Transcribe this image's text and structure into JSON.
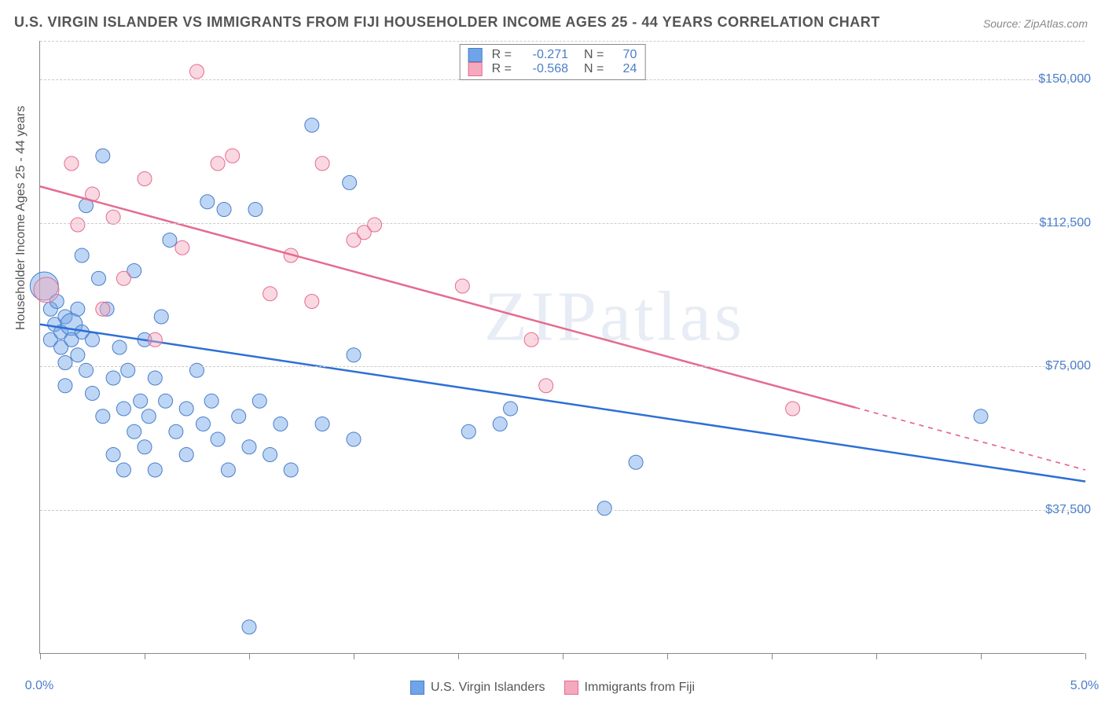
{
  "title": "U.S. VIRGIN ISLANDER VS IMMIGRANTS FROM FIJI HOUSEHOLDER INCOME AGES 25 - 44 YEARS CORRELATION CHART",
  "source": "Source: ZipAtlas.com",
  "watermark": "ZIPatlas",
  "ylabel": "Householder Income Ages 25 - 44 years",
  "chart": {
    "type": "scatter",
    "xlim": [
      0,
      5
    ],
    "ylim": [
      0,
      160000
    ],
    "x_ticks": [
      0,
      0.5,
      1.0,
      1.5,
      2.0,
      2.5,
      3.0,
      3.5,
      4.0,
      4.5,
      5.0
    ],
    "x_tick_labels": {
      "0": "0.0%",
      "5": "5.0%"
    },
    "y_gridlines": [
      37500,
      75000,
      112500,
      150000,
      160000
    ],
    "y_tick_labels": {
      "37500": "$37,500",
      "75000": "$75,000",
      "112500": "$112,500",
      "150000": "$150,000"
    },
    "background_color": "#ffffff",
    "grid_color": "#cccccc",
    "axis_color": "#888888",
    "label_color": "#555555",
    "tick_label_color": "#4a7ec9",
    "marker_radius": 9,
    "marker_opacity": 0.45,
    "line_width": 2.5,
    "series": [
      {
        "name": "U.S. Virgin Islanders",
        "color": "#6fa4e8",
        "stroke": "#4a7ec9",
        "line_color": "#2e6fd6",
        "R": "-0.271",
        "N": "70",
        "trend": {
          "x1": 0.0,
          "y1": 86000,
          "x2": 5.0,
          "y2": 45000,
          "dash_from": null
        },
        "points": [
          [
            0.02,
            96000,
            18
          ],
          [
            0.05,
            90000
          ],
          [
            0.05,
            82000
          ],
          [
            0.07,
            86000
          ],
          [
            0.08,
            92000
          ],
          [
            0.1,
            84000
          ],
          [
            0.1,
            80000
          ],
          [
            0.12,
            88000
          ],
          [
            0.12,
            76000
          ],
          [
            0.12,
            70000
          ],
          [
            0.15,
            86000,
            14
          ],
          [
            0.15,
            82000
          ],
          [
            0.18,
            90000
          ],
          [
            0.18,
            78000
          ],
          [
            0.2,
            84000
          ],
          [
            0.2,
            104000
          ],
          [
            0.22,
            74000
          ],
          [
            0.22,
            117000
          ],
          [
            0.25,
            68000
          ],
          [
            0.25,
            82000
          ],
          [
            0.28,
            98000
          ],
          [
            0.3,
            62000
          ],
          [
            0.3,
            130000
          ],
          [
            0.32,
            90000
          ],
          [
            0.35,
            72000
          ],
          [
            0.35,
            52000
          ],
          [
            0.38,
            80000
          ],
          [
            0.4,
            64000
          ],
          [
            0.4,
            48000
          ],
          [
            0.42,
            74000
          ],
          [
            0.45,
            58000
          ],
          [
            0.45,
            100000
          ],
          [
            0.48,
            66000
          ],
          [
            0.5,
            54000
          ],
          [
            0.5,
            82000
          ],
          [
            0.52,
            62000
          ],
          [
            0.55,
            72000
          ],
          [
            0.55,
            48000
          ],
          [
            0.58,
            88000
          ],
          [
            0.6,
            66000
          ],
          [
            0.62,
            108000
          ],
          [
            0.65,
            58000
          ],
          [
            0.7,
            64000
          ],
          [
            0.7,
            52000
          ],
          [
            0.75,
            74000
          ],
          [
            0.78,
            60000
          ],
          [
            0.8,
            118000
          ],
          [
            0.82,
            66000
          ],
          [
            0.85,
            56000
          ],
          [
            0.9,
            48000
          ],
          [
            0.88,
            116000
          ],
          [
            0.95,
            62000
          ],
          [
            1.0,
            54000
          ],
          [
            1.0,
            7000
          ],
          [
            1.03,
            116000
          ],
          [
            1.05,
            66000
          ],
          [
            1.1,
            52000
          ],
          [
            1.15,
            60000
          ],
          [
            1.2,
            48000
          ],
          [
            1.3,
            138000
          ],
          [
            1.35,
            60000
          ],
          [
            1.48,
            123000
          ],
          [
            1.5,
            78000
          ],
          [
            1.5,
            56000
          ],
          [
            2.05,
            58000
          ],
          [
            2.2,
            60000
          ],
          [
            2.25,
            64000
          ],
          [
            2.7,
            38000
          ],
          [
            2.85,
            50000
          ],
          [
            4.5,
            62000
          ]
        ]
      },
      {
        "name": "Immigrants from Fiji",
        "color": "#f5a9bd",
        "stroke": "#e56b8f",
        "line_color": "#e56b8f",
        "R": "-0.568",
        "N": "24",
        "trend": {
          "x1": 0.0,
          "y1": 122000,
          "x2": 5.0,
          "y2": 48000,
          "dash_from": 3.9
        },
        "points": [
          [
            0.03,
            95000,
            16
          ],
          [
            0.15,
            128000
          ],
          [
            0.18,
            112000
          ],
          [
            0.25,
            120000
          ],
          [
            0.3,
            90000
          ],
          [
            0.35,
            114000
          ],
          [
            0.4,
            98000
          ],
          [
            0.5,
            124000
          ],
          [
            0.55,
            82000
          ],
          [
            0.68,
            106000
          ],
          [
            0.75,
            152000
          ],
          [
            0.85,
            128000
          ],
          [
            0.92,
            130000
          ],
          [
            1.1,
            94000
          ],
          [
            1.2,
            104000
          ],
          [
            1.3,
            92000
          ],
          [
            1.35,
            128000
          ],
          [
            1.5,
            108000
          ],
          [
            1.55,
            110000
          ],
          [
            1.6,
            112000
          ],
          [
            2.02,
            96000
          ],
          [
            2.35,
            82000
          ],
          [
            2.42,
            70000
          ],
          [
            3.6,
            64000
          ]
        ]
      }
    ]
  }
}
